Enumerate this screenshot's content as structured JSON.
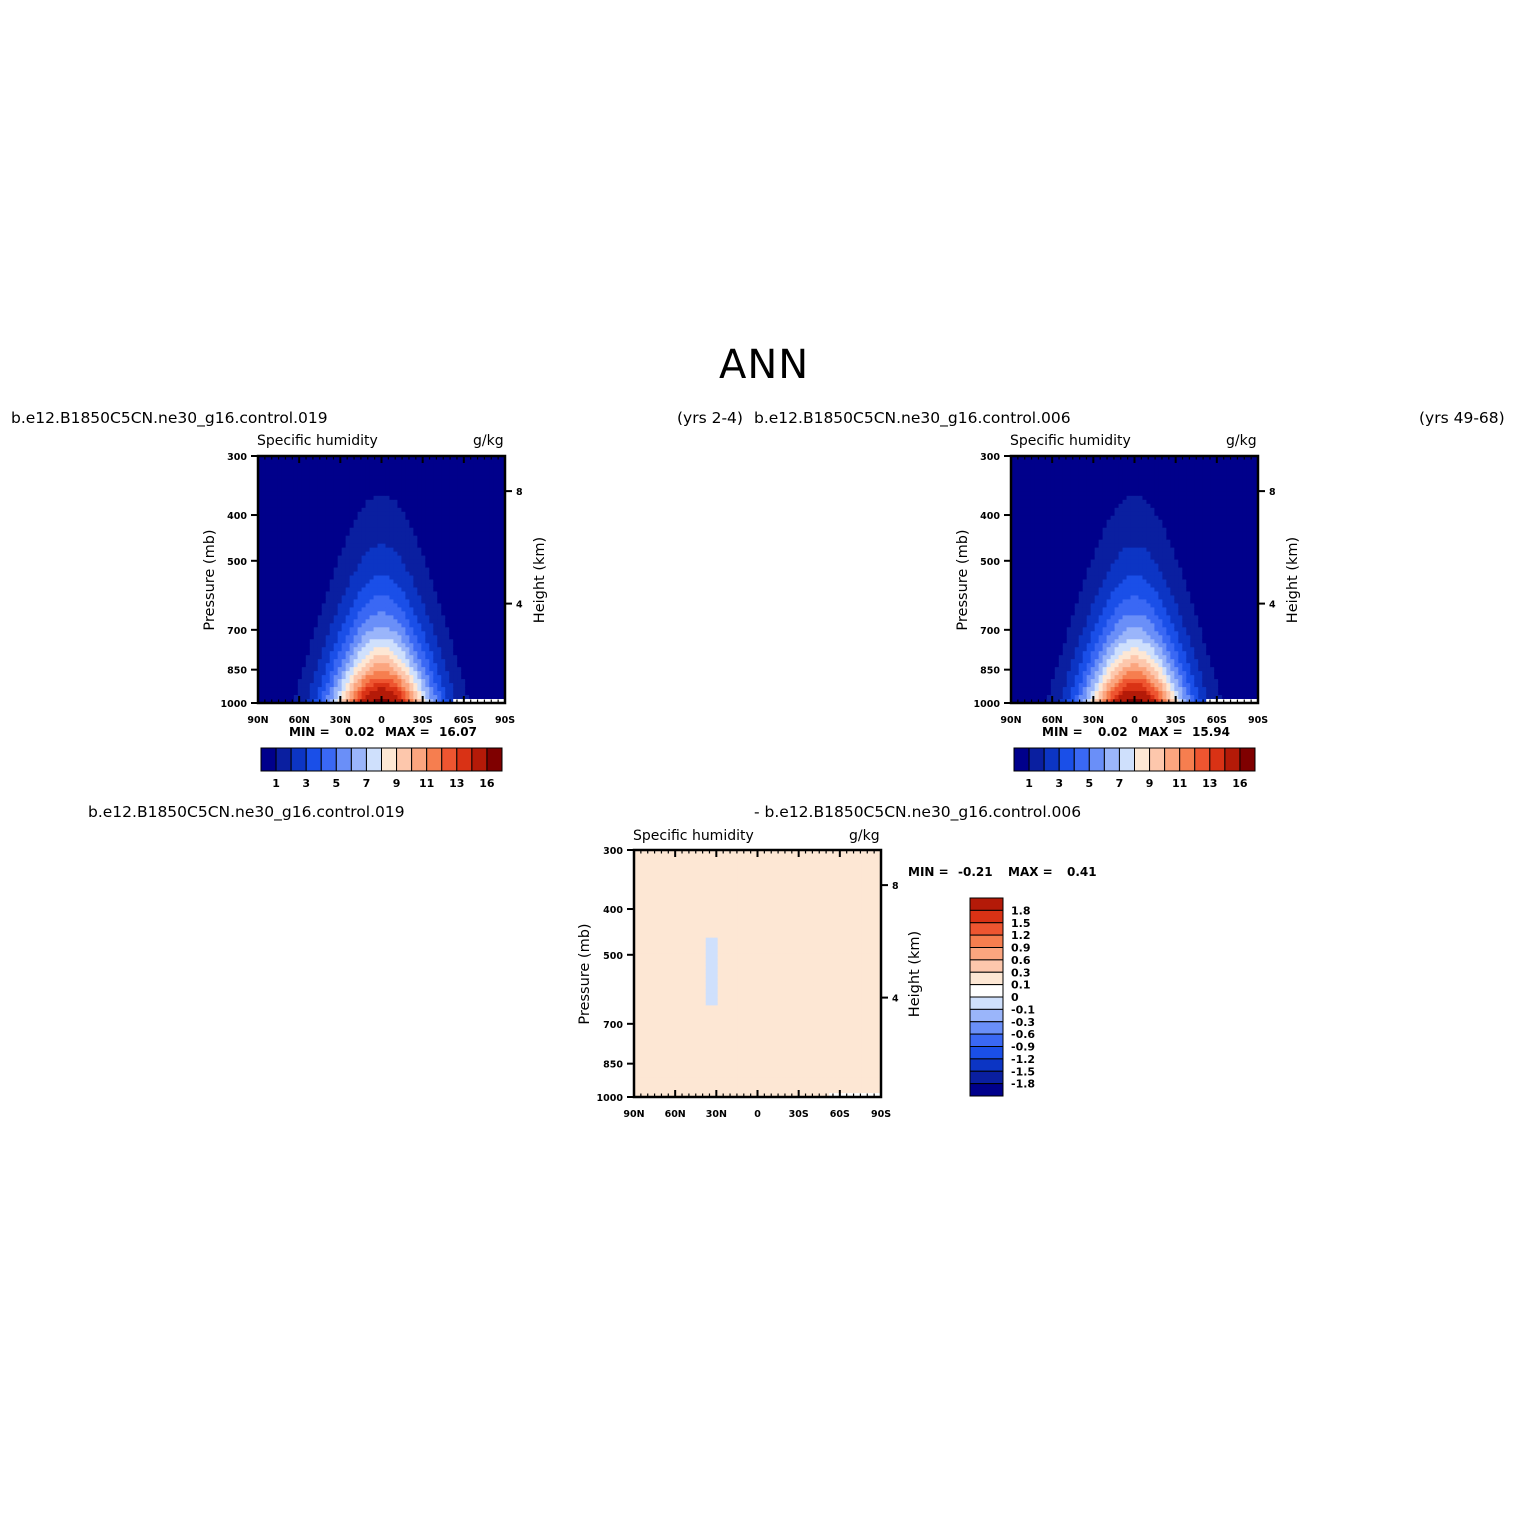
{
  "page_title": "ANN",
  "colors": {
    "mean_levels": [
      "#00008b",
      "#0a1fa0",
      "#0c35c4",
      "#1a4fe8",
      "#3a68f4",
      "#6a8ff8",
      "#9ab5fa",
      "#cfe0fc",
      "#fde7d4",
      "#fdc7ac",
      "#fba57f",
      "#f67e4f",
      "#ee5530",
      "#d93215",
      "#b41a08",
      "#7f0000"
    ],
    "diff_levels": [
      "#00008b",
      "#0a1fa0",
      "#0c35c4",
      "#1a4fe8",
      "#3a68f4",
      "#6a8ff8",
      "#9ab5fa",
      "#cfe0fc",
      "#ffffff",
      "#fde7d4",
      "#fdc7ac",
      "#fba57f",
      "#f67e4f",
      "#ee5530",
      "#d93215",
      "#b41a08",
      "#7f0000"
    ]
  },
  "panels": {
    "top_left": {
      "run": "b.e12.B1850C5CN.ne30_g16.control.019",
      "years": "(yrs 2-4)",
      "variable": "Specific humidity",
      "units": "g/kg",
      "ylabel": "Pressure (mb)",
      "y2label": "Height (km)",
      "min_label": "MIN =",
      "min_value": "0.02",
      "max_label": "MAX =",
      "max_value": "16.07"
    },
    "top_right": {
      "run": "b.e12.B1850C5CN.ne30_g16.control.006",
      "years": "(yrs 49-68)",
      "variable": "Specific humidity",
      "units": "g/kg",
      "ylabel": "Pressure (mb)",
      "y2label": "Height (km)",
      "min_label": "MIN =",
      "min_value": "0.02",
      "max_label": "MAX =",
      "max_value": "15.94"
    },
    "bottom": {
      "run_a": "b.e12.B1850C5CN.ne30_g16.control.019",
      "run_b": "- b.e12.B1850C5CN.ne30_g16.control.006",
      "variable": "Specific humidity",
      "units": "g/kg",
      "ylabel": "Pressure (mb)",
      "y2label": "Height (km)",
      "min_label": "MIN =",
      "min_value": "-0.21",
      "max_label": "MAX =",
      "max_value": "0.41"
    }
  },
  "chart_data": [
    {
      "type": "heatmap",
      "title": "Specific humidity",
      "units": "g/kg",
      "x_ticks": [
        "90N",
        "60N",
        "30N",
        "0",
        "30S",
        "60S",
        "90S"
      ],
      "y_ticks": [
        "300",
        "400",
        "500",
        "700",
        "850",
        "1000"
      ],
      "y2_ticks": [
        "8",
        "4"
      ],
      "ylim": [
        1000,
        300
      ],
      "y_scale": "log",
      "colorbar_labels": [
        "1",
        "3",
        "5",
        "7",
        "9",
        "11",
        "13",
        "16"
      ],
      "contour_levels": [
        1,
        2,
        3,
        4,
        5,
        6,
        7,
        8,
        9,
        10,
        11,
        12,
        13,
        14,
        16
      ],
      "min": 0.02,
      "max": 16.07
    },
    {
      "type": "heatmap",
      "title": "Specific humidity",
      "units": "g/kg",
      "x_ticks": [
        "90N",
        "60N",
        "30N",
        "0",
        "30S",
        "60S",
        "90S"
      ],
      "y_ticks": [
        "300",
        "400",
        "500",
        "700",
        "850",
        "1000"
      ],
      "y2_ticks": [
        "8",
        "4"
      ],
      "ylim": [
        1000,
        300
      ],
      "y_scale": "log",
      "colorbar_labels": [
        "1",
        "3",
        "5",
        "7",
        "9",
        "11",
        "13",
        "16"
      ],
      "contour_levels": [
        1,
        2,
        3,
        4,
        5,
        6,
        7,
        8,
        9,
        10,
        11,
        12,
        13,
        14,
        16
      ],
      "min": 0.02,
      "max": 15.94
    },
    {
      "type": "heatmap",
      "title": "Specific humidity",
      "units": "g/kg",
      "x_ticks": [
        "90N",
        "60N",
        "30N",
        "0",
        "30S",
        "60S",
        "90S"
      ],
      "y_ticks": [
        "300",
        "400",
        "500",
        "700",
        "850",
        "1000"
      ],
      "y2_ticks": [
        "8",
        "4"
      ],
      "ylim": [
        1000,
        300
      ],
      "y_scale": "log",
      "colorbar_labels": [
        "1.8",
        "1.5",
        "1.2",
        "0.9",
        "0.6",
        "0.3",
        "0.1",
        "0",
        "-0.1",
        "-0.3",
        "-0.6",
        "-0.9",
        "-1.2",
        "-1.5",
        "-1.8"
      ],
      "min": -0.21,
      "max": 0.41
    }
  ]
}
